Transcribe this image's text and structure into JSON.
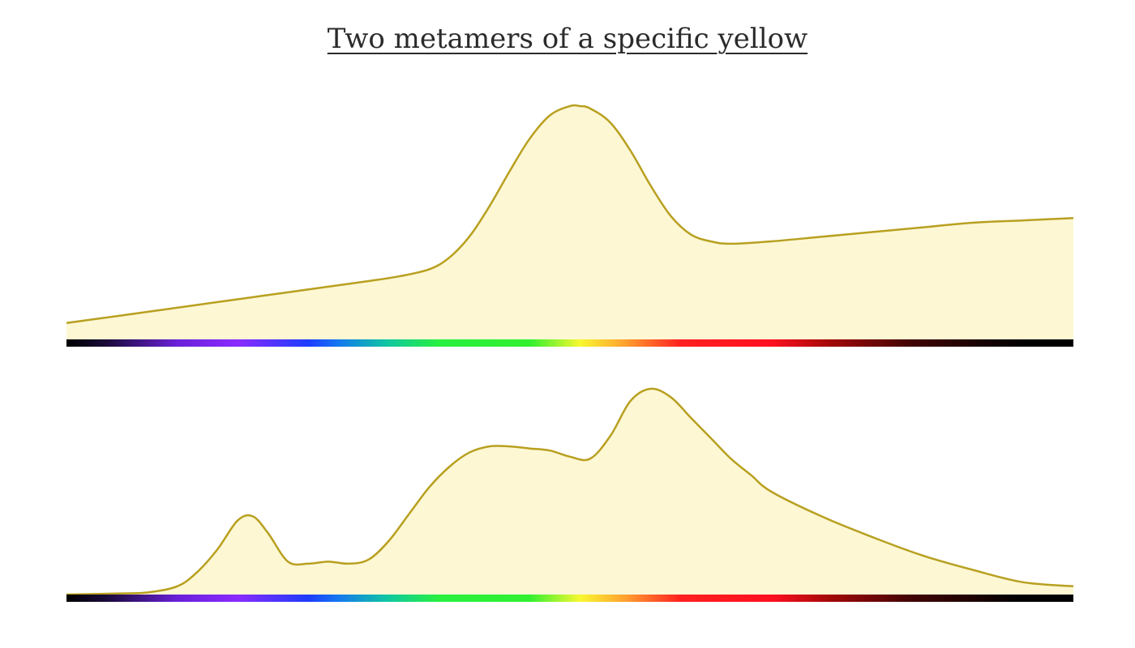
{
  "title": "Two metamers of a specific yellow",
  "colors": {
    "fill": "#fdf7d4",
    "stroke": "#b8a020",
    "bar_end": "#000000"
  },
  "spectrum_stops": [
    {
      "offset": 0.0,
      "color": "#000000"
    },
    {
      "offset": 0.04,
      "color": "#1a0a3a"
    },
    {
      "offset": 0.11,
      "color": "#6a20d8"
    },
    {
      "offset": 0.17,
      "color": "#8a2bff"
    },
    {
      "offset": 0.24,
      "color": "#1e3cff"
    },
    {
      "offset": 0.27,
      "color": "#1478f0"
    },
    {
      "offset": 0.32,
      "color": "#10c8a0"
    },
    {
      "offset": 0.37,
      "color": "#28f040"
    },
    {
      "offset": 0.46,
      "color": "#30f030"
    },
    {
      "offset": 0.51,
      "color": "#f8f830"
    },
    {
      "offset": 0.555,
      "color": "#ffa030"
    },
    {
      "offset": 0.61,
      "color": "#ff2020"
    },
    {
      "offset": 0.7,
      "color": "#ff1020"
    },
    {
      "offset": 0.76,
      "color": "#a00808"
    },
    {
      "offset": 0.84,
      "color": "#400404"
    },
    {
      "offset": 0.95,
      "color": "#000000"
    },
    {
      "offset": 1.0,
      "color": "#000000"
    }
  ],
  "chart_data": [
    {
      "type": "area",
      "x": [
        0.0,
        0.05,
        0.1,
        0.15,
        0.2,
        0.25,
        0.3,
        0.33,
        0.36,
        0.38,
        0.4,
        0.42,
        0.44,
        0.46,
        0.48,
        0.5,
        0.51,
        0.52,
        0.54,
        0.56,
        0.58,
        0.6,
        0.62,
        0.64,
        0.66,
        0.7,
        0.75,
        0.8,
        0.85,
        0.9,
        0.95,
        1.0
      ],
      "values": [
        0.07,
        0.1,
        0.13,
        0.16,
        0.19,
        0.22,
        0.25,
        0.27,
        0.3,
        0.35,
        0.44,
        0.57,
        0.72,
        0.86,
        0.96,
        1.0,
        1.0,
        0.99,
        0.93,
        0.81,
        0.66,
        0.53,
        0.45,
        0.42,
        0.41,
        0.42,
        0.44,
        0.46,
        0.48,
        0.5,
        0.51,
        0.52
      ],
      "ylim": [
        0,
        1
      ]
    },
    {
      "type": "area",
      "x": [
        0.0,
        0.05,
        0.08,
        0.11,
        0.13,
        0.15,
        0.17,
        0.185,
        0.2,
        0.22,
        0.24,
        0.26,
        0.28,
        0.3,
        0.32,
        0.34,
        0.36,
        0.38,
        0.4,
        0.42,
        0.44,
        0.46,
        0.48,
        0.5,
        0.52,
        0.54,
        0.56,
        0.58,
        0.6,
        0.62,
        0.64,
        0.66,
        0.68,
        0.7,
        0.75,
        0.8,
        0.85,
        0.9,
        0.95,
        1.0
      ],
      "values": [
        0.0,
        0.005,
        0.01,
        0.04,
        0.11,
        0.22,
        0.36,
        0.38,
        0.3,
        0.16,
        0.15,
        0.16,
        0.15,
        0.17,
        0.26,
        0.39,
        0.52,
        0.62,
        0.69,
        0.72,
        0.72,
        0.71,
        0.7,
        0.67,
        0.66,
        0.77,
        0.94,
        1.0,
        0.96,
        0.86,
        0.76,
        0.66,
        0.58,
        0.5,
        0.38,
        0.28,
        0.19,
        0.12,
        0.06,
        0.04
      ],
      "ylim": [
        0,
        1
      ]
    }
  ]
}
